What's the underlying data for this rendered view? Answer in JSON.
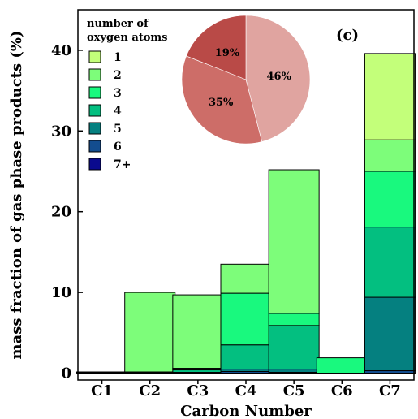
{
  "chart_data": [
    {
      "type": "bar",
      "stacked": true,
      "panel_label": "(c)",
      "xlabel": "Carbon Number",
      "ylabel": "mass fraction of gas phase products (%)",
      "categories": [
        "C1",
        "C2",
        "C3",
        "C4",
        "C5",
        "C6",
        "C7"
      ],
      "ylim": [
        0,
        45
      ],
      "yticks": [
        0,
        10,
        20,
        30,
        40
      ],
      "grid": false,
      "legend": {
        "title": "number of oxygen atoms",
        "position": "top-left"
      },
      "series": [
        {
          "name": "1",
          "color": "#c3ff7a",
          "values": [
            0.05,
            0.0,
            0.0,
            0.0,
            0.0,
            0.0,
            10.7
          ]
        },
        {
          "name": "2",
          "color": "#7dfd7a",
          "values": [
            0.1,
            9.85,
            9.1,
            3.6,
            17.8,
            0.0,
            3.9
          ]
        },
        {
          "name": "3",
          "color": "#19f97e",
          "values": [
            0.0,
            0.0,
            0.2,
            6.4,
            1.5,
            1.9,
            6.9
          ]
        },
        {
          "name": "4",
          "color": "#03bf80",
          "values": [
            0.0,
            0.1,
            0.3,
            3.0,
            5.4,
            0.0,
            8.7
          ]
        },
        {
          "name": "5",
          "color": "#058080",
          "values": [
            0.0,
            0.05,
            0.1,
            0.3,
            0.4,
            0.0,
            9.1
          ]
        },
        {
          "name": "6",
          "color": "#134d8f",
          "values": [
            0.0,
            0.0,
            0.0,
            0.2,
            0.1,
            0.0,
            0.3
          ]
        },
        {
          "name": "7+",
          "color": "#0a0a8e",
          "values": [
            0.0,
            0.0,
            0.0,
            0.0,
            0.0,
            0.0,
            0.0
          ]
        }
      ]
    },
    {
      "type": "pie",
      "slices": [
        {
          "label": "46%",
          "value": 46,
          "color": "#e0a4a0"
        },
        {
          "label": "35%",
          "value": 35,
          "color": "#cd6d68"
        },
        {
          "label": "19%",
          "value": 19,
          "color": "#b94a47"
        }
      ]
    }
  ]
}
